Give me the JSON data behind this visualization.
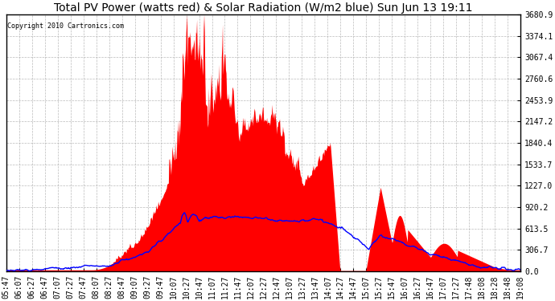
{
  "title": "Total PV Power (watts red) & Solar Radiation (W/m2 blue) Sun Jun 13 19:11",
  "copyright_text": "Copyright 2010 Cartronics.com",
  "yticks": [
    0.0,
    306.7,
    613.5,
    920.2,
    1227.0,
    1533.7,
    1840.4,
    2147.2,
    2453.9,
    2760.6,
    3067.4,
    3374.1,
    3680.9
  ],
  "ymax": 3680.9,
  "background_color": "#ffffff",
  "plot_bg_color": "#ffffff",
  "grid_color": "#aaaaaa",
  "red_color": "#ff0000",
  "blue_color": "#0000ff",
  "title_fontsize": 10,
  "tick_fontsize": 7.0,
  "xtick_labels": [
    "05:47",
    "06:07",
    "06:27",
    "06:47",
    "07:07",
    "07:27",
    "07:47",
    "08:07",
    "08:27",
    "08:47",
    "09:07",
    "09:27",
    "09:47",
    "10:07",
    "10:27",
    "10:47",
    "11:07",
    "11:27",
    "11:47",
    "12:07",
    "12:27",
    "12:47",
    "13:07",
    "13:27",
    "13:47",
    "14:07",
    "14:27",
    "14:47",
    "15:07",
    "15:27",
    "15:47",
    "16:07",
    "16:27",
    "16:47",
    "17:07",
    "17:27",
    "17:48",
    "18:08",
    "18:28",
    "18:48",
    "19:08"
  ],
  "solar_max_scaled": 920.2,
  "pv_spike_max": 3680.9
}
